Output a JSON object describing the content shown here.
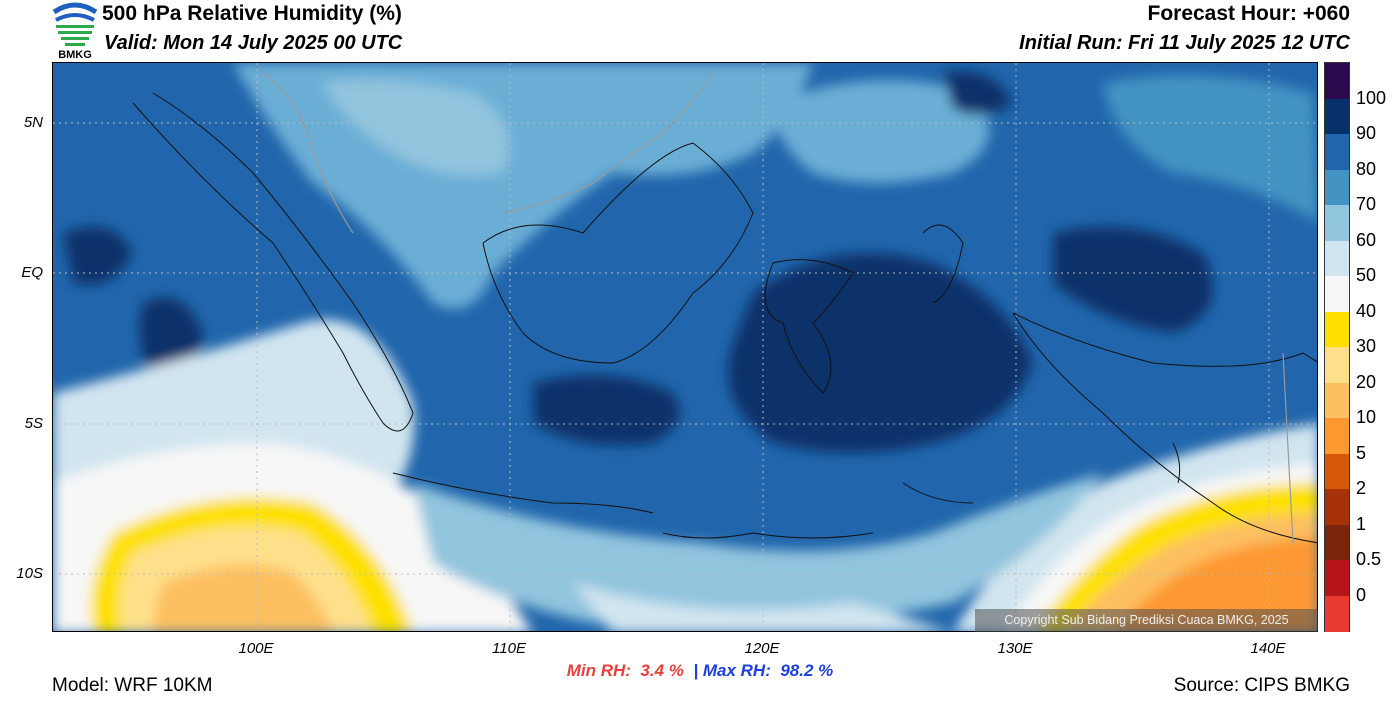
{
  "header": {
    "title": "500 hPa Relative Humidity (%)",
    "valid": "Valid: Mon 14 July 2025 00 UTC",
    "forecast_hour": "Forecast Hour: +060",
    "initial_run": "Initial Run: Fri 11 July 2025 12 UTC",
    "logo_text": "BMKG"
  },
  "map": {
    "lat_labels": [
      "5N",
      "EQ",
      "5S",
      "10S"
    ],
    "lon_labels": [
      "100E",
      "110E",
      "120E",
      "130E",
      "140E"
    ],
    "copyright": "Copyright Sub Bidang Prediksi Cuaca BMKG, 2025"
  },
  "colorbar": {
    "labels": [
      "100",
      "90",
      "80",
      "70",
      "60",
      "50",
      "40",
      "30",
      "20",
      "10",
      "5",
      "2",
      "1",
      "0.5",
      "0"
    ],
    "colors": [
      "#2d0a4e",
      "#08306b",
      "#2166ac",
      "#4393c3",
      "#92c5de",
      "#d1e5f0",
      "#f7f7f7",
      "#fde000",
      "#fee08b",
      "#fdc060",
      "#fd9830",
      "#d8580a",
      "#a83208",
      "#7a240e",
      "#b5141a",
      "#e83a30"
    ]
  },
  "stats": {
    "min_label": "Min RH:",
    "min_value": "3.4 %",
    "separator": "|",
    "max_label": "Max RH:",
    "max_value": "98.2 %"
  },
  "footer": {
    "model": "Model: WRF 10KM",
    "source": "Source: CIPS BMKG"
  }
}
